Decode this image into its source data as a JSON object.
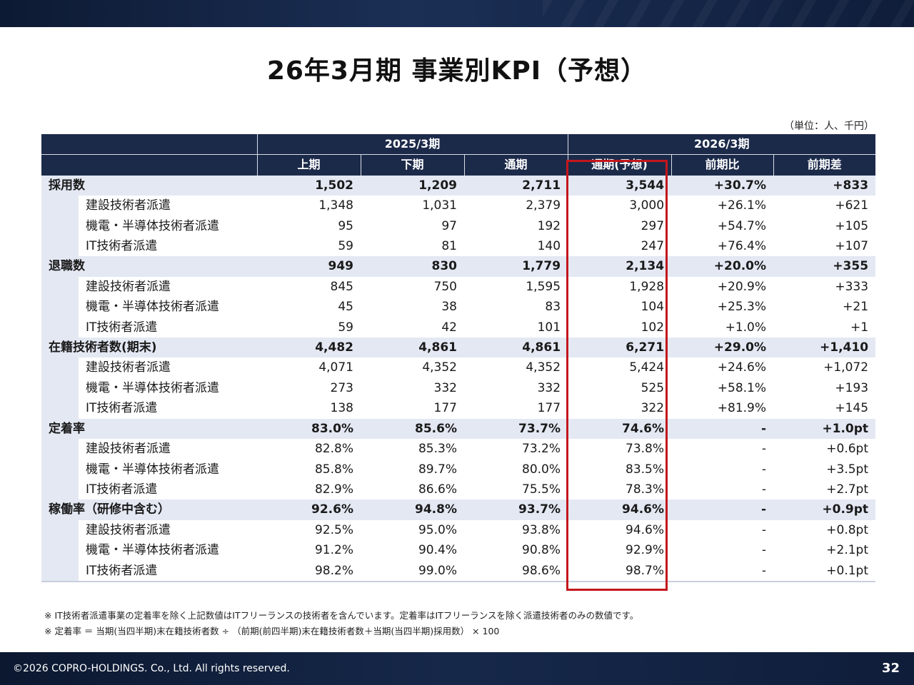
{
  "title": "26年3月期 事業別KPI（予想）",
  "unit_note": "（単位：人、千円）",
  "header": {
    "period_2025": "2025/3期",
    "period_2026": "2026/3期",
    "columns": [
      "上期",
      "下期",
      "通期",
      "通期(予想)",
      "前期比",
      "前期差"
    ]
  },
  "rows": [
    {
      "type": "cat",
      "label": "採用数",
      "values": [
        "1,502",
        "1,209",
        "2,711",
        "3,544",
        "+30.7%",
        "+833"
      ]
    },
    {
      "type": "sub",
      "label": "建設技術者派遣",
      "values": [
        "1,348",
        "1,031",
        "2,379",
        "3,000",
        "+26.1%",
        "+621"
      ]
    },
    {
      "type": "sub",
      "label": "機電・半導体技術者派遣",
      "values": [
        "95",
        "97",
        "192",
        "297",
        "+54.7%",
        "+105"
      ]
    },
    {
      "type": "sub",
      "label": "IT技術者派遣",
      "values": [
        "59",
        "81",
        "140",
        "247",
        "+76.4%",
        "+107"
      ]
    },
    {
      "type": "cat",
      "label": "退職数",
      "values": [
        "949",
        "830",
        "1,779",
        "2,134",
        "+20.0%",
        "+355"
      ]
    },
    {
      "type": "sub",
      "label": "建設技術者派遣",
      "values": [
        "845",
        "750",
        "1,595",
        "1,928",
        "+20.9%",
        "+333"
      ]
    },
    {
      "type": "sub",
      "label": "機電・半導体技術者派遣",
      "values": [
        "45",
        "38",
        "83",
        "104",
        "+25.3%",
        "+21"
      ]
    },
    {
      "type": "sub",
      "label": "IT技術者派遣",
      "values": [
        "59",
        "42",
        "101",
        "102",
        "+1.0%",
        "+1"
      ]
    },
    {
      "type": "cat",
      "label": "在籍技術者数(期末)",
      "values": [
        "4,482",
        "4,861",
        "4,861",
        "6,271",
        "+29.0%",
        "+1,410"
      ]
    },
    {
      "type": "sub",
      "label": "建設技術者派遣",
      "values": [
        "4,071",
        "4,352",
        "4,352",
        "5,424",
        "+24.6%",
        "+1,072"
      ]
    },
    {
      "type": "sub",
      "label": "機電・半導体技術者派遣",
      "values": [
        "273",
        "332",
        "332",
        "525",
        "+58.1%",
        "+193"
      ]
    },
    {
      "type": "sub",
      "label": "IT技術者派遣",
      "values": [
        "138",
        "177",
        "177",
        "322",
        "+81.9%",
        "+145"
      ]
    },
    {
      "type": "cat",
      "label": "定着率",
      "values": [
        "83.0%",
        "85.6%",
        "73.7%",
        "74.6%",
        "-",
        "+1.0pt"
      ]
    },
    {
      "type": "sub",
      "label": "建設技術者派遣",
      "values": [
        "82.8%",
        "85.3%",
        "73.2%",
        "73.8%",
        "-",
        "+0.6pt"
      ]
    },
    {
      "type": "sub",
      "label": "機電・半導体技術者派遣",
      "values": [
        "85.8%",
        "89.7%",
        "80.0%",
        "83.5%",
        "-",
        "+3.5pt"
      ]
    },
    {
      "type": "sub",
      "label": "IT技術者派遣",
      "values": [
        "82.9%",
        "86.6%",
        "75.5%",
        "78.3%",
        "-",
        "+2.7pt"
      ]
    },
    {
      "type": "cat",
      "label": "稼働率（研修中含む）",
      "values": [
        "92.6%",
        "94.8%",
        "93.7%",
        "94.6%",
        "-",
        "+0.9pt"
      ]
    },
    {
      "type": "sub",
      "label": "建設技術者派遣",
      "values": [
        "92.5%",
        "95.0%",
        "93.8%",
        "94.6%",
        "-",
        "+0.8pt"
      ]
    },
    {
      "type": "sub",
      "label": "機電・半導体技術者派遣",
      "values": [
        "91.2%",
        "90.4%",
        "90.8%",
        "92.9%",
        "-",
        "+2.1pt"
      ]
    },
    {
      "type": "sub",
      "label": "IT技術者派遣",
      "values": [
        "98.2%",
        "99.0%",
        "98.6%",
        "98.7%",
        "-",
        "+0.1pt"
      ]
    }
  ],
  "notes": [
    "※ IT技術者派遣事業の定着率を除く上記数値はITフリーランスの技術者を含んでいます。定着率はITフリーランスを除く派遣技術者のみの数値です。",
    "※ 定着率 ＝ 当期(当四半期)末在籍技術者数 ÷ （前期(前四半期)末在籍技術者数＋当期(当四半期)採用数） × 100"
  ],
  "footer": {
    "copyright": "©2026 COPRO-HOLDINGS. Co., Ltd. All rights reserved.",
    "page_number": "32"
  }
}
